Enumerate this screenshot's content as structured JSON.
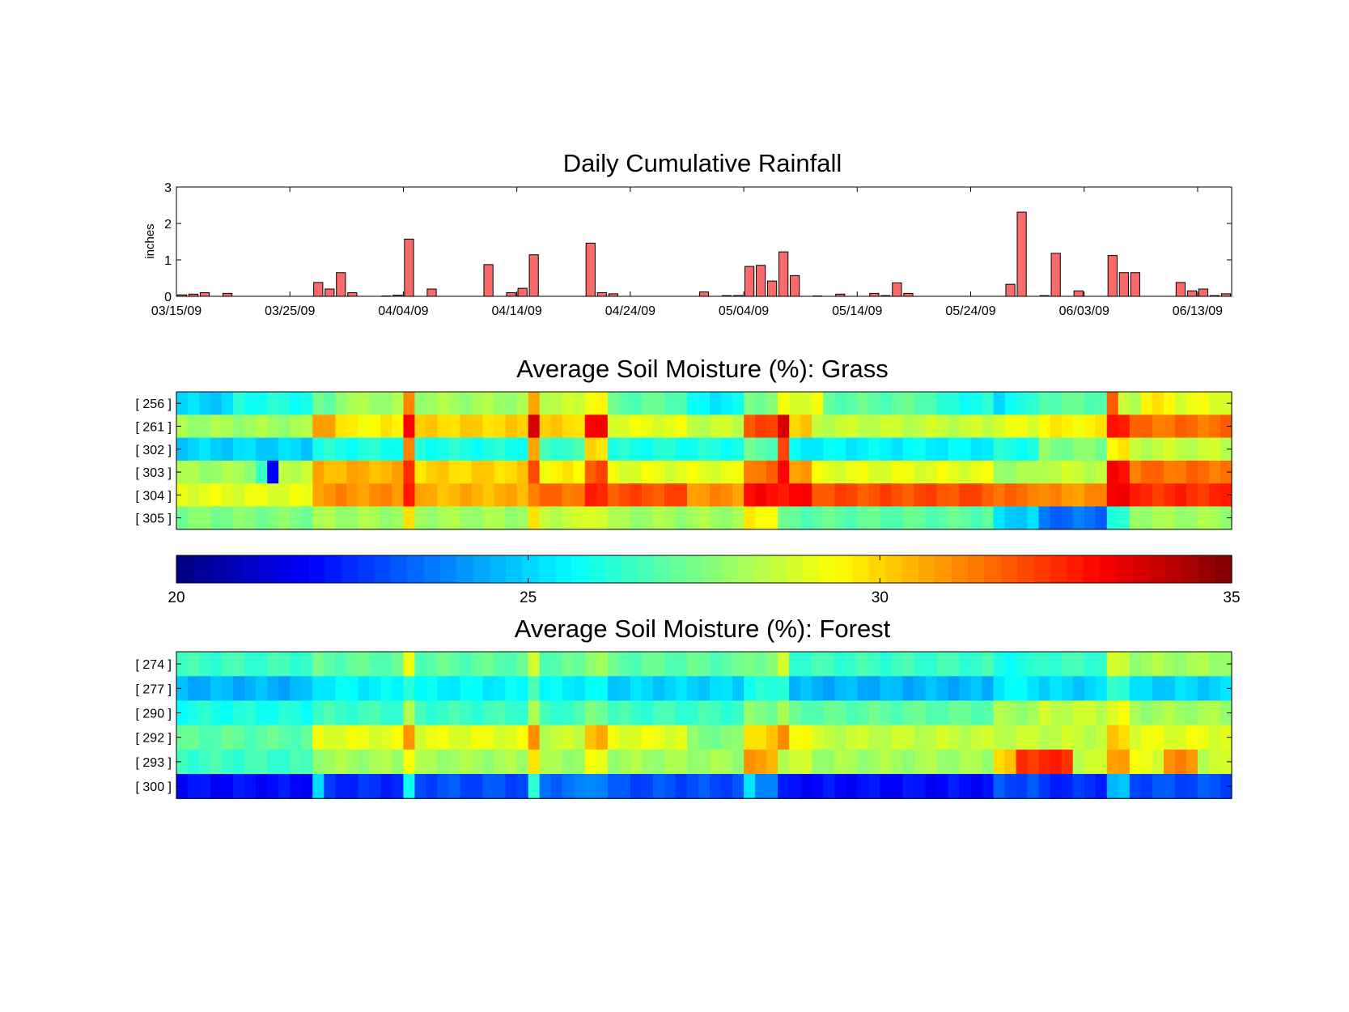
{
  "chart_data": [
    {
      "type": "bar",
      "title": "Daily Cumulative Rainfall",
      "xlabel": "",
      "ylabel": "inches",
      "ylim": [
        0,
        3
      ],
      "yticks": [
        "0",
        "1",
        "2",
        "3"
      ],
      "xticks": [
        "03/15/09",
        "03/25/09",
        "04/04/09",
        "04/14/09",
        "04/24/09",
        "05/04/09",
        "05/14/09",
        "05/24/09",
        "06/03/09",
        "06/13/09"
      ],
      "x_start": "03/15/09",
      "x_end": "06/16/09",
      "bar_color": "#f96b6b",
      "series": [
        {
          "values": [
            0.04,
            0.06,
            0.1,
            0,
            0.08,
            0,
            0,
            0,
            0,
            0,
            0,
            0,
            0.38,
            0.2,
            0.65,
            0.1,
            0,
            0,
            0.01,
            0.03,
            1.57,
            0,
            0.2,
            0,
            0,
            0,
            0,
            0.87,
            0,
            0.1,
            0.22,
            1.14,
            0,
            0,
            0,
            0,
            1.46,
            0.1,
            0.07,
            0,
            0,
            0,
            0,
            0,
            0,
            0,
            0.12,
            0,
            0.02,
            0.02,
            0.82,
            0.85,
            0.42,
            1.22,
            0.57,
            0,
            0.01,
            0,
            0.06,
            0,
            0,
            0.08,
            0.02,
            0.37,
            0.08,
            0,
            0,
            0,
            0,
            0,
            0,
            0,
            0,
            0.33,
            2.31,
            0,
            0.02,
            1.18,
            0,
            0.15,
            0,
            0,
            1.12,
            0.65,
            0.65,
            0,
            0,
            0,
            0.38,
            0.15,
            0.2,
            0.02,
            0.07
          ]
        }
      ]
    },
    {
      "type": "heatmap",
      "title": "Average Soil Moisture (%): Grass",
      "rows": [
        "[ 256 ]",
        "[ 261 ]",
        "[ 302 ]",
        "[ 303 ]",
        "[ 304 ]",
        "[ 305 ]"
      ],
      "days": 93,
      "colorscale": "jet",
      "segments": [
        [
          [
            0,
            4,
            25.0
          ],
          [
            5,
            11,
            26.0
          ],
          [
            12,
            13,
            27.0
          ],
          [
            14,
            19,
            28.0
          ],
          [
            20,
            20,
            31.0
          ],
          [
            21,
            30,
            28.0
          ],
          [
            31,
            31,
            30.5
          ],
          [
            32,
            35,
            28.5
          ],
          [
            36,
            37,
            29.5
          ],
          [
            38,
            44,
            27.0
          ],
          [
            45,
            49,
            25.5
          ],
          [
            50,
            52,
            27.5
          ],
          [
            53,
            56,
            29.0
          ],
          [
            57,
            66,
            27.0
          ],
          [
            67,
            71,
            26.0
          ],
          [
            72,
            72,
            25.0
          ],
          [
            73,
            75,
            26.0
          ],
          [
            76,
            81,
            27.0
          ],
          [
            82,
            82,
            31.5
          ],
          [
            83,
            84,
            28.5
          ],
          [
            85,
            87,
            29.5
          ],
          [
            88,
            92,
            29.0
          ]
        ],
        [
          [
            0,
            11,
            28.0
          ],
          [
            12,
            13,
            31.0
          ],
          [
            14,
            19,
            29.5
          ],
          [
            20,
            20,
            33.5
          ],
          [
            21,
            30,
            30.0
          ],
          [
            31,
            31,
            34.0
          ],
          [
            32,
            35,
            30.0
          ],
          [
            36,
            37,
            33.0
          ],
          [
            38,
            44,
            29.0
          ],
          [
            45,
            49,
            28.5
          ],
          [
            50,
            52,
            32.0
          ],
          [
            53,
            53,
            34.0
          ],
          [
            54,
            55,
            30.0
          ],
          [
            56,
            71,
            28.5
          ],
          [
            72,
            75,
            29.0
          ],
          [
            76,
            81,
            29.5
          ],
          [
            82,
            83,
            33.0
          ],
          [
            84,
            92,
            31.5
          ]
        ],
        [
          [
            0,
            11,
            25.0
          ],
          [
            12,
            19,
            26.0
          ],
          [
            20,
            20,
            31.0
          ],
          [
            21,
            30,
            26.0
          ],
          [
            31,
            31,
            30.5
          ],
          [
            32,
            35,
            26.5
          ],
          [
            36,
            37,
            30.0
          ],
          [
            38,
            49,
            26.0
          ],
          [
            50,
            52,
            27.0
          ],
          [
            53,
            53,
            32.0
          ],
          [
            54,
            71,
            25.5
          ],
          [
            72,
            75,
            26.0
          ],
          [
            76,
            81,
            27.5
          ],
          [
            82,
            83,
            29.5
          ],
          [
            84,
            92,
            28.5
          ]
        ],
        [
          [
            0,
            6,
            28.0
          ],
          [
            7,
            7,
            26.5
          ],
          [
            8,
            8,
            21.5
          ],
          [
            9,
            11,
            28.5
          ],
          [
            12,
            19,
            30.5
          ],
          [
            20,
            20,
            32.5
          ],
          [
            21,
            30,
            30.0
          ],
          [
            31,
            31,
            32.0
          ],
          [
            32,
            35,
            29.5
          ],
          [
            36,
            37,
            32.0
          ],
          [
            38,
            49,
            29.0
          ],
          [
            50,
            52,
            31.5
          ],
          [
            53,
            53,
            33.0
          ],
          [
            54,
            55,
            31.0
          ],
          [
            56,
            71,
            29.0
          ],
          [
            72,
            75,
            28.0
          ],
          [
            76,
            81,
            28.5
          ],
          [
            82,
            83,
            33.0
          ],
          [
            84,
            92,
            31.5
          ]
        ],
        [
          [
            0,
            11,
            29.0
          ],
          [
            12,
            19,
            31.0
          ],
          [
            20,
            20,
            33.0
          ],
          [
            21,
            30,
            30.5
          ],
          [
            31,
            35,
            31.5
          ],
          [
            36,
            37,
            32.5
          ],
          [
            38,
            44,
            32.0
          ],
          [
            45,
            49,
            31.0
          ],
          [
            50,
            55,
            33.0
          ],
          [
            56,
            71,
            32.0
          ],
          [
            72,
            75,
            31.5
          ],
          [
            76,
            81,
            31.0
          ],
          [
            82,
            83,
            33.5
          ],
          [
            84,
            92,
            32.5
          ]
        ],
        [
          [
            0,
            11,
            27.5
          ],
          [
            12,
            19,
            28.0
          ],
          [
            20,
            20,
            29.5
          ],
          [
            21,
            30,
            28.0
          ],
          [
            31,
            31,
            29.5
          ],
          [
            32,
            35,
            28.5
          ],
          [
            36,
            37,
            29.0
          ],
          [
            38,
            49,
            28.0
          ],
          [
            50,
            52,
            29.5
          ],
          [
            53,
            71,
            27.0
          ],
          [
            72,
            75,
            25.0
          ],
          [
            76,
            81,
            23.5
          ],
          [
            82,
            83,
            26.0
          ],
          [
            84,
            92,
            28.0
          ]
        ]
      ]
    },
    {
      "type": "colorbar",
      "range": [
        20,
        35
      ],
      "ticks": [
        "20",
        "25",
        "30",
        "35"
      ],
      "colorscale": "jet"
    },
    {
      "type": "heatmap",
      "title": "Average Soil Moisture (%): Forest",
      "rows": [
        "[ 274 ]",
        "[ 277 ]",
        "[ 290 ]",
        "[ 292 ]",
        "[ 293 ]",
        "[ 300 ]"
      ],
      "days": 93,
      "colorscale": "jet",
      "segments": [
        [
          [
            0,
            11,
            26.5
          ],
          [
            12,
            19,
            27.0
          ],
          [
            20,
            20,
            29.0
          ],
          [
            21,
            30,
            27.0
          ],
          [
            31,
            31,
            28.5
          ],
          [
            32,
            35,
            27.0
          ],
          [
            36,
            37,
            28.0
          ],
          [
            38,
            49,
            27.0
          ],
          [
            50,
            52,
            27.5
          ],
          [
            53,
            53,
            28.5
          ],
          [
            54,
            71,
            26.5
          ],
          [
            72,
            75,
            26.0
          ],
          [
            76,
            81,
            26.5
          ],
          [
            82,
            83,
            28.5
          ],
          [
            84,
            92,
            28.0
          ]
        ],
        [
          [
            0,
            11,
            24.5
          ],
          [
            12,
            19,
            25.5
          ],
          [
            20,
            20,
            26.5
          ],
          [
            21,
            30,
            25.5
          ],
          [
            31,
            31,
            27.0
          ],
          [
            32,
            35,
            25.5
          ],
          [
            36,
            37,
            25.5
          ],
          [
            38,
            49,
            25.0
          ],
          [
            50,
            52,
            26.0
          ],
          [
            53,
            53,
            26.5
          ],
          [
            54,
            71,
            24.5
          ],
          [
            72,
            75,
            25.5
          ],
          [
            76,
            81,
            25.0
          ],
          [
            82,
            83,
            26.5
          ],
          [
            84,
            92,
            25.0
          ]
        ],
        [
          [
            0,
            11,
            26.0
          ],
          [
            12,
            19,
            26.5
          ],
          [
            20,
            20,
            28.0
          ],
          [
            21,
            30,
            26.5
          ],
          [
            31,
            31,
            28.0
          ],
          [
            32,
            35,
            26.5
          ],
          [
            36,
            37,
            27.5
          ],
          [
            38,
            49,
            26.5
          ],
          [
            50,
            52,
            27.5
          ],
          [
            53,
            53,
            28.0
          ],
          [
            54,
            71,
            27.0
          ],
          [
            72,
            75,
            28.0
          ],
          [
            76,
            81,
            28.5
          ],
          [
            82,
            83,
            29.0
          ],
          [
            84,
            92,
            28.0
          ]
        ],
        [
          [
            0,
            11,
            27.0
          ],
          [
            12,
            19,
            29.0
          ],
          [
            20,
            20,
            31.0
          ],
          [
            21,
            30,
            29.0
          ],
          [
            31,
            31,
            31.0
          ],
          [
            32,
            35,
            28.5
          ],
          [
            36,
            37,
            30.5
          ],
          [
            38,
            44,
            29.0
          ],
          [
            45,
            49,
            27.5
          ],
          [
            50,
            52,
            30.0
          ],
          [
            53,
            53,
            31.0
          ],
          [
            54,
            55,
            29.5
          ],
          [
            56,
            71,
            28.5
          ],
          [
            72,
            75,
            28.5
          ],
          [
            76,
            81,
            28.5
          ],
          [
            82,
            83,
            30.0
          ],
          [
            84,
            92,
            29.0
          ]
        ],
        [
          [
            0,
            11,
            26.5
          ],
          [
            12,
            19,
            28.0
          ],
          [
            20,
            20,
            29.5
          ],
          [
            21,
            30,
            28.0
          ],
          [
            31,
            31,
            30.0
          ],
          [
            32,
            35,
            28.0
          ],
          [
            36,
            37,
            29.0
          ],
          [
            38,
            49,
            28.0
          ],
          [
            50,
            50,
            31.0
          ],
          [
            51,
            52,
            30.5
          ],
          [
            53,
            55,
            28.5
          ],
          [
            56,
            71,
            28.0
          ],
          [
            72,
            73,
            30.0
          ],
          [
            74,
            78,
            32.5
          ],
          [
            79,
            81,
            28.5
          ],
          [
            82,
            83,
            31.0
          ],
          [
            84,
            86,
            29.0
          ],
          [
            87,
            89,
            31.0
          ],
          [
            90,
            92,
            28.5
          ]
        ],
        [
          [
            0,
            11,
            22.0
          ],
          [
            12,
            12,
            25.0
          ],
          [
            13,
            19,
            22.5
          ],
          [
            20,
            20,
            25.5
          ],
          [
            21,
            30,
            23.0
          ],
          [
            31,
            31,
            26.0
          ],
          [
            32,
            35,
            23.5
          ],
          [
            36,
            37,
            24.0
          ],
          [
            38,
            49,
            23.0
          ],
          [
            50,
            50,
            25.0
          ],
          [
            51,
            52,
            24.0
          ],
          [
            53,
            71,
            22.0
          ],
          [
            72,
            75,
            23.0
          ],
          [
            76,
            81,
            22.5
          ],
          [
            82,
            83,
            24.5
          ],
          [
            84,
            92,
            23.0
          ]
        ]
      ]
    }
  ]
}
